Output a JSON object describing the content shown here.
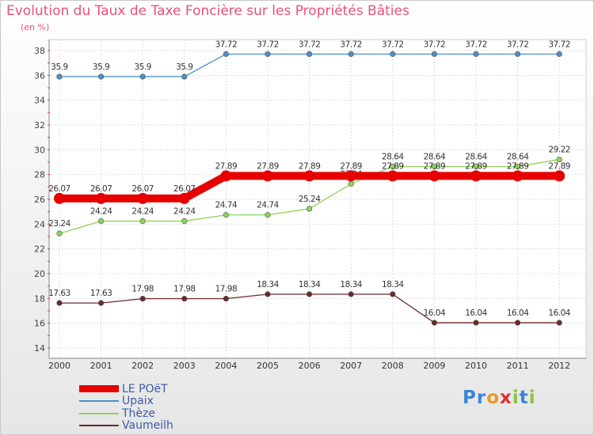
{
  "chart_data": {
    "type": "line",
    "title": "Evolution du Taux de Taxe Foncière sur les Propriétés Bâties",
    "unit_label": "(en %)",
    "categories": [
      "2000",
      "2001",
      "2002",
      "2003",
      "2004",
      "2005",
      "2006",
      "2007",
      "2008",
      "2009",
      "2010",
      "2011",
      "2012"
    ],
    "ylim": [
      14,
      38
    ],
    "yticks": [
      14,
      16,
      18,
      20,
      22,
      24,
      26,
      28,
      30,
      32,
      34,
      36,
      38
    ],
    "series": [
      {
        "name": "Upaix",
        "color": "#4d8fc4",
        "values": [
          35.9,
          35.9,
          35.9,
          35.9,
          37.72,
          37.72,
          37.72,
          37.72,
          37.72,
          37.72,
          37.72,
          37.72,
          37.72
        ],
        "labels": [
          "35.9",
          "35.9",
          "35.9",
          "35.9",
          "37.72",
          "37.72",
          "37.72",
          "37.72",
          "37.72",
          "37.72",
          "37.72",
          "37.72",
          "37.72"
        ]
      },
      {
        "name": "Thèze",
        "color": "#8ed25a",
        "values": [
          23.24,
          24.24,
          24.24,
          24.24,
          24.74,
          24.74,
          25.24,
          27.24,
          28.64,
          28.64,
          28.64,
          28.64,
          29.22
        ],
        "labels": [
          "23.24",
          "24.24",
          "24.24",
          "24.24",
          "24.74",
          "24.74",
          "25.24",
          "27.24",
          "28.64",
          "28.64",
          "28.64",
          "28.64",
          "29.22"
        ]
      },
      {
        "name": "Vaumeilh",
        "color": "#6b2a2a",
        "values": [
          17.63,
          17.63,
          17.98,
          17.98,
          17.98,
          18.34,
          18.34,
          18.34,
          18.34,
          16.04,
          16.04,
          16.04,
          16.04
        ],
        "labels": [
          "17.63",
          "17.63",
          "17.98",
          "17.98",
          "17.98",
          "18.34",
          "18.34",
          "18.34",
          "18.34",
          "16.04",
          "16.04",
          "16.04",
          "16.04"
        ]
      },
      {
        "name": "LE POëT",
        "color": "#e60000",
        "values": [
          26.07,
          26.07,
          26.07,
          26.07,
          27.89,
          27.89,
          27.89,
          27.89,
          27.89,
          27.89,
          27.89,
          27.89,
          27.89
        ],
        "labels": [
          "26.07",
          "26.07",
          "26.07",
          "26.07",
          "27.89",
          "27.89",
          "27.89",
          "27.89",
          "27.89",
          "27.89",
          "27.89",
          "27.89",
          "27.89"
        ]
      }
    ],
    "legend": [
      "LE POëT",
      "Upaix",
      "Thèze",
      "Vaumeilh"
    ],
    "legend_position": "bottom-left"
  },
  "brand": {
    "logo_text": "Proxiti"
  }
}
